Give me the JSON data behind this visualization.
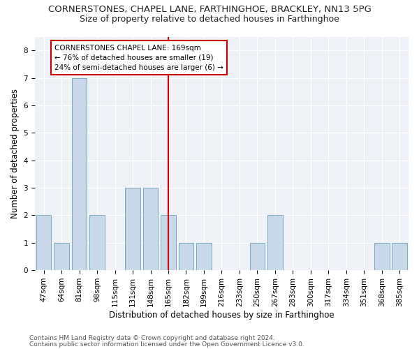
{
  "title": "CORNERSTONES, CHAPEL LANE, FARTHINGHOE, BRACKLEY, NN13 5PG",
  "subtitle": "Size of property relative to detached houses in Farthinghoe",
  "xlabel": "Distribution of detached houses by size in Farthinghoe",
  "ylabel": "Number of detached properties",
  "categories": [
    "47sqm",
    "64sqm",
    "81sqm",
    "98sqm",
    "115sqm",
    "131sqm",
    "148sqm",
    "165sqm",
    "182sqm",
    "199sqm",
    "216sqm",
    "233sqm",
    "250sqm",
    "267sqm",
    "283sqm",
    "300sqm",
    "317sqm",
    "334sqm",
    "351sqm",
    "368sqm",
    "385sqm"
  ],
  "values": [
    2,
    1,
    7,
    2,
    0,
    3,
    3,
    2,
    1,
    1,
    0,
    0,
    1,
    2,
    0,
    0,
    0,
    0,
    0,
    1,
    1
  ],
  "bar_color": "#c8d8e8",
  "bar_edge_color": "#7aaac8",
  "highlight_index": 7,
  "highlight_line_color": "#cc0000",
  "annotation_line1": "CORNERSTONES CHAPEL LANE: 169sqm",
  "annotation_line2": "← 76% of detached houses are smaller (19)",
  "annotation_line3": "24% of semi-detached houses are larger (6) →",
  "annotation_box_color": "#ffffff",
  "annotation_box_edge_color": "#cc0000",
  "ylim": [
    0,
    8.5
  ],
  "yticks": [
    0,
    1,
    2,
    3,
    4,
    5,
    6,
    7,
    8
  ],
  "background_color": "#eef2f7",
  "footer1": "Contains HM Land Registry data © Crown copyright and database right 2024.",
  "footer2": "Contains public sector information licensed under the Open Government Licence v3.0.",
  "title_fontsize": 9.5,
  "subtitle_fontsize": 9,
  "xlabel_fontsize": 8.5,
  "ylabel_fontsize": 8.5,
  "tick_fontsize": 7.5,
  "annotation_fontsize": 7.5,
  "footer_fontsize": 6.5
}
